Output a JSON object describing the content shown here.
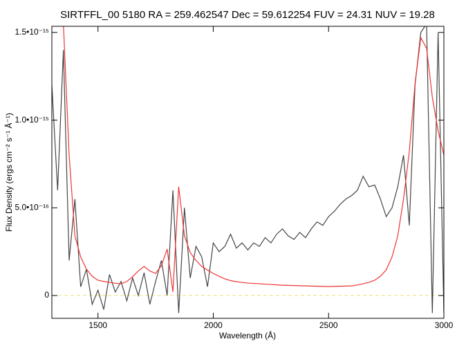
{
  "chart_data": {
    "type": "line",
    "title": "SIRTFFL_00 5180 RA = 259.462547 Dec =  59.612254 FUV = 24.31 NUV = 19.28",
    "x_label": "Wavelength (Å)",
    "y_label": "Flux Density (ergs cm⁻² s⁻¹ Å⁻¹)",
    "x": [
      1300,
      1325,
      1350,
      1375,
      1400,
      1425,
      1450,
      1475,
      1500,
      1525,
      1550,
      1575,
      1600,
      1625,
      1650,
      1675,
      1700,
      1725,
      1750,
      1775,
      1800,
      1825,
      1850,
      1875,
      1900,
      1925,
      1950,
      1975,
      2000,
      2025,
      2050,
      2075,
      2100,
      2125,
      2150,
      2175,
      2200,
      2225,
      2250,
      2275,
      2300,
      2325,
      2350,
      2375,
      2400,
      2425,
      2450,
      2475,
      2500,
      2525,
      2550,
      2575,
      2600,
      2625,
      2650,
      2675,
      2700,
      2725,
      2750,
      2775,
      2800,
      2825,
      2850,
      2875,
      2900,
      2925,
      2950,
      2975,
      3000
    ],
    "series": [
      {
        "color": "#444444",
        "values": [
          1.2e-15,
          6e-16,
          1.4e-15,
          2e-16,
          5.5e-16,
          5e-17,
          1.5e-16,
          -5e-17,
          3e-17,
          -8e-17,
          1.2e-16,
          2e-17,
          8e-17,
          -3e-17,
          1e-16,
          0,
          1.3e-16,
          -5e-17,
          8e-17,
          2e-16,
          0,
          6e-16,
          -1e-16,
          5e-16,
          1e-16,
          2.8e-16,
          2.2e-16,
          5e-17,
          3e-16,
          2.5e-16,
          2.8e-16,
          3.5e-16,
          2.7e-16,
          3e-16,
          2.6e-16,
          3e-16,
          2.8e-16,
          3.3e-16,
          3e-16,
          3.5e-16,
          3.8e-16,
          3.4e-16,
          3.2e-16,
          3.6e-16,
          3.3e-16,
          3.8e-16,
          4.2e-16,
          4e-16,
          4.5e-16,
          4.8e-16,
          5.2e-16,
          5.5e-16,
          5.7e-16,
          6e-16,
          6.8e-16,
          6.2e-16,
          6.3e-16,
          5.5e-16,
          4.5e-16,
          5e-16,
          6.2e-16,
          8e-16,
          4e-16,
          1.2e-15,
          1.5e-15,
          1.55e-15,
          -1e-16,
          1.5e-15,
          -1e-16
        ]
      },
      {
        "color": "#ee3333",
        "values": [
          1.6e-15,
          1.6e-15,
          1.55e-15,
          8e-16,
          3.4e-16,
          2.2e-16,
          1.5e-16,
          1.1e-16,
          8.7e-17,
          8e-17,
          7.5e-17,
          7e-17,
          6.7e-17,
          8e-17,
          1.07e-16,
          1.4e-16,
          1.66e-16,
          1.4e-16,
          1.26e-16,
          1.7e-16,
          2.65e-16,
          2e-17,
          6.2e-16,
          3.4e-16,
          2.45e-16,
          2e-16,
          1.66e-16,
          1.45e-16,
          1.26e-16,
          1.1e-16,
          9.5e-17,
          8.5e-17,
          7.9e-17,
          7.5e-17,
          7.1e-17,
          6.9e-17,
          6.7e-17,
          6.5e-17,
          6.3e-17,
          6.1e-17,
          5.9e-17,
          5.8e-17,
          5.7e-17,
          5.6e-17,
          5.5e-17,
          5.4e-17,
          5.3e-17,
          5.2e-17,
          5.1e-17,
          5.2e-17,
          5.3e-17,
          5.4e-17,
          5.5e-17,
          6e-17,
          6.7e-17,
          7.5e-17,
          8.7e-17,
          1.1e-16,
          1.46e-16,
          2.2e-16,
          3.4e-16,
          5.5e-16,
          8.2e-16,
          1.21e-15,
          1.47e-15,
          1.41e-15,
          1.13e-15,
          9.4e-16,
          8e-16
        ]
      }
    ],
    "reference_line": {
      "value": 0,
      "color": "#e8e070",
      "dashed": true
    },
    "xlim": [
      1300,
      3000
    ],
    "xticks": [
      1500,
      2000,
      2500,
      3000
    ],
    "ylim": [
      -1.3e-16,
      1.535e-15
    ],
    "yticks": [
      0,
      {
        "value": 5e-16,
        "label": "5.0•10⁻¹⁶"
      },
      {
        "value": 1e-15,
        "label": "1.0•10⁻¹⁵"
      },
      {
        "value": 1.5e-15,
        "label": "1.5•10⁻¹⁵"
      }
    ]
  }
}
